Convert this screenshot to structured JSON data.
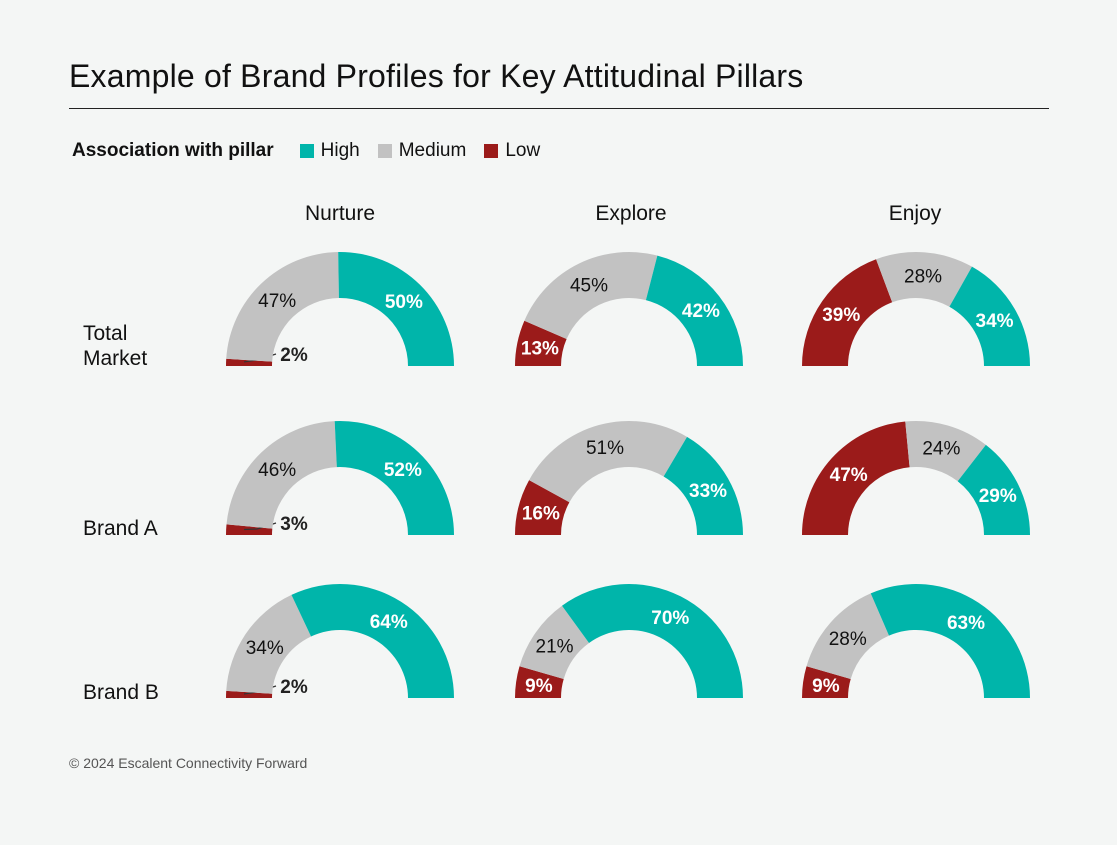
{
  "title": "Example of Brand Profiles for Key Attitudinal Pillars",
  "legend": {
    "title": "Association with pillar",
    "items": [
      {
        "label": "High",
        "color": "#00b5aa"
      },
      {
        "label": "Medium",
        "color": "#c2c2c2"
      },
      {
        "label": "Low",
        "color": "#9b1b1a"
      }
    ]
  },
  "columns": [
    "Nurture",
    "Explore",
    "Enjoy"
  ],
  "rows": [
    {
      "label_line1": "Total",
      "label_line2": "Market"
    },
    {
      "label_line1": "Brand A",
      "label_line2": ""
    },
    {
      "label_line1": "Brand B",
      "label_line2": ""
    }
  ],
  "chart_data": [
    {
      "type": "pie",
      "subtype": "half-donut",
      "row": "Total Market",
      "column": "Nurture",
      "order": [
        "Low",
        "Medium",
        "High"
      ],
      "values": {
        "Low": 2,
        "Medium": 47,
        "High": 50
      },
      "labels": {
        "Low": "2%",
        "Medium": "47%",
        "High": "50%"
      }
    },
    {
      "type": "pie",
      "subtype": "half-donut",
      "row": "Total Market",
      "column": "Explore",
      "order": [
        "Low",
        "Medium",
        "High"
      ],
      "values": {
        "Low": 13,
        "Medium": 45,
        "High": 42
      },
      "labels": {
        "Low": "13%",
        "Medium": "45%",
        "High": "42%"
      }
    },
    {
      "type": "pie",
      "subtype": "half-donut",
      "row": "Total Market",
      "column": "Enjoy",
      "order": [
        "Low",
        "Medium",
        "High"
      ],
      "values": {
        "Low": 39,
        "Medium": 28,
        "High": 34
      },
      "labels": {
        "Low": "39%",
        "Medium": "28%",
        "High": "34%"
      }
    },
    {
      "type": "pie",
      "subtype": "half-donut",
      "row": "Brand A",
      "column": "Nurture",
      "order": [
        "Low",
        "Medium",
        "High"
      ],
      "values": {
        "Low": 3,
        "Medium": 46,
        "High": 52
      },
      "labels": {
        "Low": "3%",
        "Medium": "46%",
        "High": "52%"
      }
    },
    {
      "type": "pie",
      "subtype": "half-donut",
      "row": "Brand A",
      "column": "Explore",
      "order": [
        "Low",
        "Medium",
        "High"
      ],
      "values": {
        "Low": 16,
        "Medium": 51,
        "High": 33
      },
      "labels": {
        "Low": "16%",
        "Medium": "51%",
        "High": "33%"
      }
    },
    {
      "type": "pie",
      "subtype": "half-donut",
      "row": "Brand A",
      "column": "Enjoy",
      "order": [
        "Low",
        "Medium",
        "High"
      ],
      "values": {
        "Low": 47,
        "Medium": 24,
        "High": 29
      },
      "labels": {
        "Low": "47%",
        "Medium": "24%",
        "High": "29%"
      }
    },
    {
      "type": "pie",
      "subtype": "half-donut",
      "row": "Brand B",
      "column": "Nurture",
      "order": [
        "Low",
        "Medium",
        "High"
      ],
      "values": {
        "Low": 2,
        "Medium": 34,
        "High": 64
      },
      "labels": {
        "Low": "2%",
        "Medium": "34%",
        "High": "64%"
      }
    },
    {
      "type": "pie",
      "subtype": "half-donut",
      "row": "Brand B",
      "column": "Explore",
      "order": [
        "Low",
        "Medium",
        "High"
      ],
      "values": {
        "Low": 9,
        "Medium": 21,
        "High": 70
      },
      "labels": {
        "Low": "9%",
        "Medium": "21%",
        "High": "70%"
      }
    },
    {
      "type": "pie",
      "subtype": "half-donut",
      "row": "Brand B",
      "column": "Enjoy",
      "order": [
        "Low",
        "Medium",
        "High"
      ],
      "values": {
        "Low": 9,
        "Medium": 28,
        "High": 63
      },
      "labels": {
        "Low": "9%",
        "Medium": "28%",
        "High": "63%"
      }
    }
  ],
  "footer": "© 2024 Escalent Connectivity Forward"
}
